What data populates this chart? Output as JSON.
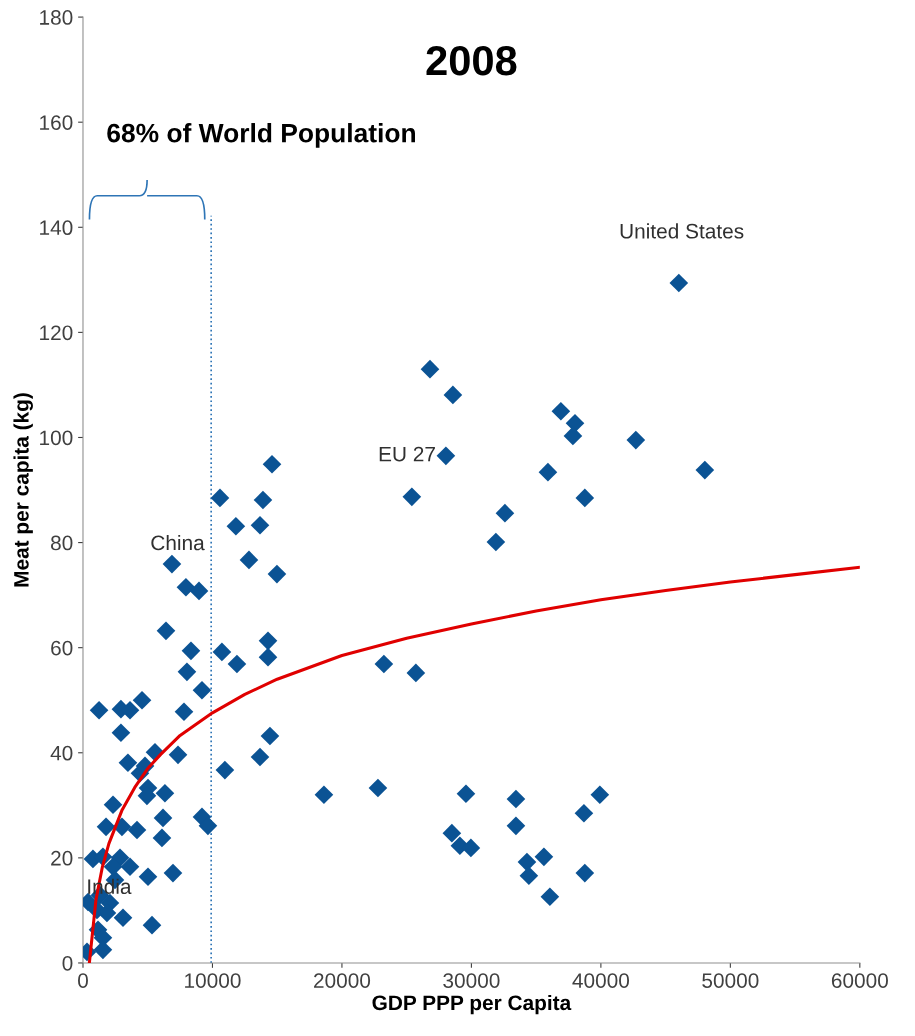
{
  "chart_data": {
    "type": "scatter",
    "title": "2008",
    "xlabel": "GDP PPP per Capita",
    "ylabel": "Meat per capita (kg)",
    "xlim": [
      0,
      60000
    ],
    "xticks": [
      0,
      10000,
      20000,
      30000,
      40000,
      50000,
      60000
    ],
    "ylim": [
      0,
      180
    ],
    "yticks": [
      0,
      20,
      40,
      60,
      80,
      100,
      120,
      140,
      160,
      180
    ],
    "grid": false,
    "legend": false,
    "marker": "diamond",
    "series": [
      {
        "color": "#0b5394",
        "x": [
          46020,
          26800,
          28570,
          36910,
          38000,
          37840,
          42700,
          28030,
          35910,
          48030,
          25400,
          38760,
          32590,
          31890,
          23240,
          25710,
          18610,
          22780,
          29580,
          33440,
          39920,
          33440,
          38690,
          28490,
          29110,
          29960,
          35600,
          34290,
          34440,
          38760,
          36060,
          14600,
          10580,
          13900,
          11810,
          13670,
          12820,
          14980,
          10730,
          11890,
          14290,
          14290,
          14440,
          13670,
          10960,
          6870,
          7950,
          8960,
          6410,
          8340,
          8030,
          9190,
          1240,
          2930,
          3630,
          4560,
          7800,
          2930,
          5560,
          7340,
          3470,
          4790,
          4400,
          5020,
          6330,
          4940,
          2320,
          1780,
          3010,
          4170,
          6180,
          6100,
          9190,
          9650,
          770,
          1540,
          2860,
          3630,
          5020,
          6950,
          390,
          1310,
          2080,
          3090,
          5330,
          1160,
          1540,
          310,
          1540,
          2320,
          2470,
          1080,
          1850
        ],
        "values": [
          129.4,
          113.0,
          108.1,
          105.0,
          102.7,
          100.3,
          99.5,
          96.5,
          93.4,
          93.8,
          88.7,
          88.5,
          85.6,
          80.1,
          56.9,
          55.2,
          32.0,
          33.3,
          32.2,
          31.2,
          32.0,
          26.1,
          28.5,
          24.7,
          22.3,
          21.9,
          20.2,
          19.2,
          16.6,
          17.1,
          12.6,
          94.9,
          88.5,
          88.1,
          83.1,
          83.3,
          76.7,
          74.0,
          59.2,
          56.9,
          61.3,
          58.2,
          43.2,
          39.2,
          36.7,
          75.9,
          71.5,
          70.8,
          63.2,
          59.4,
          55.4,
          51.9,
          48.1,
          48.3,
          48.1,
          50.0,
          47.8,
          43.8,
          40.1,
          39.6,
          38.1,
          37.5,
          36.1,
          33.3,
          32.3,
          31.8,
          30.1,
          25.9,
          25.9,
          25.3,
          27.6,
          23.8,
          27.8,
          26.1,
          19.8,
          20.2,
          20.0,
          18.3,
          16.4,
          17.1,
          11.6,
          12.9,
          11.4,
          8.6,
          7.2,
          6.3,
          4.8,
          2.1,
          2.5,
          18.3,
          15.8,
          10.1,
          9.5
        ]
      },
      {
        "type": "line",
        "color": "#e00000",
        "marker": "none",
        "line_style": "solid",
        "x": [
          500,
          1000,
          1500,
          2000,
          3000,
          4000,
          5000,
          6000,
          7500,
          10000,
          12500,
          15000,
          20000,
          25000,
          30000,
          35000,
          40000,
          45000,
          50000,
          55000,
          60000
        ],
        "values": [
          0.2,
          12,
          18.3,
          22.7,
          29,
          33.4,
          37,
          39.7,
          43.3,
          47.6,
          51.1,
          54,
          58.5,
          61.8,
          64.5,
          67.0,
          69.1,
          70.9,
          72.5,
          73.9,
          75.3
        ]
      }
    ],
    "ref_lines": [
      {
        "axis": "x",
        "value": 9900,
        "color": "#2e75b6",
        "line_style": "dotted"
      }
    ],
    "annotations": [
      "68% of World Population",
      {
        "text": "China",
        "x": 6870,
        "y": 75.9
      },
      {
        "text": "India",
        "x": 2860,
        "y": 20.0
      },
      {
        "text": "EU 27",
        "x": 28030,
        "y": 96.5
      },
      {
        "text": "United States",
        "x": 46020,
        "y": 129.4
      }
    ]
  }
}
